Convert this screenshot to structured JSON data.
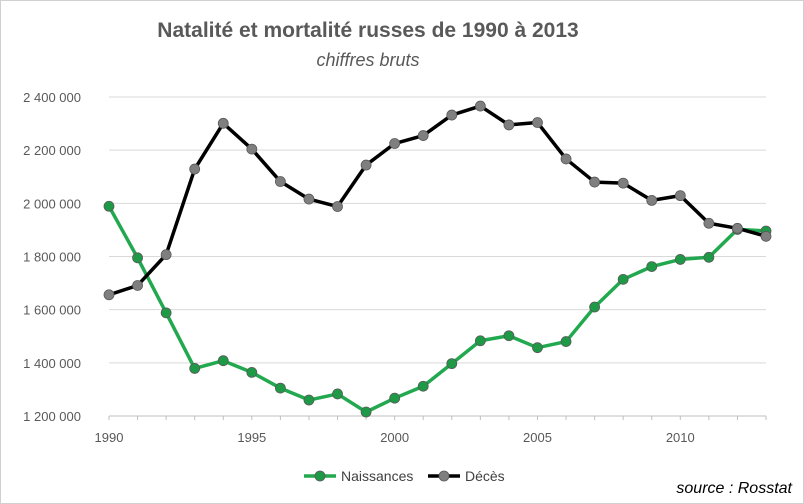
{
  "chart_data": {
    "type": "line",
    "title": "Natalité et mortalité russes de 1990 à 2013",
    "subtitle": "chiffres bruts",
    "source": "source : Rosstat",
    "x": [
      1990,
      1991,
      1992,
      1993,
      1994,
      1995,
      1996,
      1997,
      1998,
      1999,
      2000,
      2001,
      2002,
      2003,
      2004,
      2005,
      2006,
      2007,
      2008,
      2009,
      2010,
      2011,
      2012,
      2013
    ],
    "xticks": [
      1990,
      1995,
      2000,
      2005,
      2010
    ],
    "xtick_labels": [
      "1990",
      "1995",
      "2000",
      "2005",
      "2010"
    ],
    "xlim": [
      1990,
      2013
    ],
    "ylim": [
      1200000,
      2400000
    ],
    "yticks": [
      1200000,
      1400000,
      1600000,
      1800000,
      2000000,
      2200000,
      2400000
    ],
    "ytick_labels": [
      "1 200 000",
      "1 400 000",
      "1 600 000",
      "1 800 000",
      "2 000 000",
      "2 200 000",
      "2 400 000"
    ],
    "grid": "horizontal",
    "legend_position": "bottom",
    "series": [
      {
        "name": "Naissances",
        "color": "#22a94f",
        "marker_color": "#1e9a47",
        "values": [
          1989000,
          1795000,
          1588000,
          1379000,
          1408000,
          1364000,
          1305000,
          1260000,
          1283000,
          1215000,
          1267000,
          1312000,
          1397000,
          1483000,
          1502000,
          1457000,
          1480000,
          1610000,
          1714000,
          1762000,
          1789000,
          1797000,
          1902000,
          1896000
        ]
      },
      {
        "name": "Décès",
        "color": "#000000",
        "marker_color": "#7f7f7f",
        "values": [
          1656000,
          1691000,
          1807000,
          2129000,
          2301000,
          2204000,
          2082000,
          2016000,
          1988000,
          2144000,
          2225000,
          2255000,
          2332000,
          2366000,
          2295000,
          2304000,
          2167000,
          2080000,
          2076000,
          2011000,
          2029000,
          1925000,
          1906000,
          1876000
        ]
      }
    ]
  }
}
